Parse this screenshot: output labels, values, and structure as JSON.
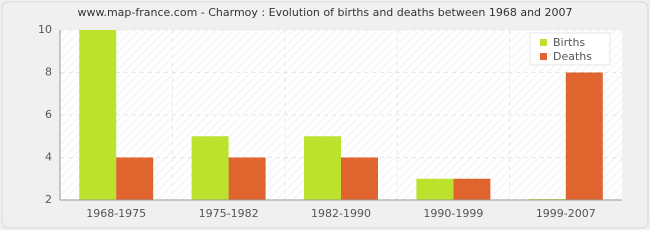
{
  "chart_data": {
    "type": "bar",
    "title": "www.map-france.com - Charmoy : Evolution of births and deaths between 1968 and 2007",
    "categories": [
      "1968-1975",
      "1975-1982",
      "1982-1990",
      "1990-1999",
      "1999-2007"
    ],
    "series": [
      {
        "name": "Births",
        "color": "#bde22e",
        "values": [
          10,
          5,
          5,
          3,
          2
        ]
      },
      {
        "name": "Deaths",
        "color": "#e0642e",
        "values": [
          4,
          4,
          4,
          3,
          8
        ]
      }
    ],
    "ylim": [
      2,
      10
    ],
    "yticks": [
      2,
      4,
      6,
      8,
      10
    ],
    "grid": true,
    "legend": "top-right"
  }
}
